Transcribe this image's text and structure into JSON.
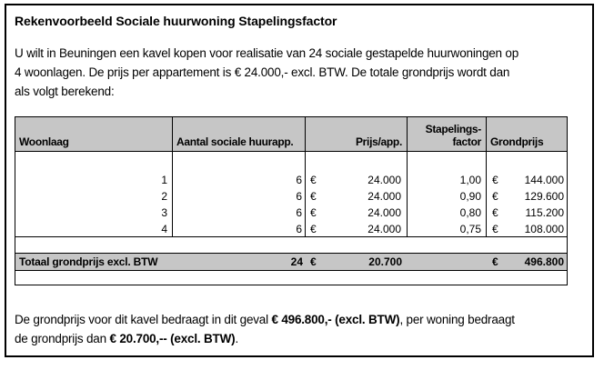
{
  "colors": {
    "page_bg": "#ffffff",
    "text": "#000000",
    "border": "#000000",
    "table_header_bg": "#c6c6c6",
    "table_total_bg": "#c6c6c6"
  },
  "document": {
    "title": "Rekenvoorbeeld Sociale huurwoning Stapelingsfactor",
    "intro_lines": [
      "U wilt in Beuningen een kavel kopen voor realisatie van 24 sociale gestapelde huurwoningen op",
      "4 woonlagen. De prijs per appartement is € 24.000,- excl. BTW. De totale grondprijs wordt dan",
      "als volgt berekend:"
    ],
    "closing_lines": [
      {
        "segments": [
          {
            "text": "De grondprijs voor dit kavel bedraagt in dit geval ",
            "bold": false
          },
          {
            "text": "€ 496.800,- (excl. BTW)",
            "bold": true
          },
          {
            "text": ", per woning bedraagt",
            "bold": false
          }
        ]
      },
      {
        "segments": [
          {
            "text": "de grondprijs dan ",
            "bold": false
          },
          {
            "text": "€ 20.700,-- (excl. BTW)",
            "bold": true
          },
          {
            "text": ".",
            "bold": false
          }
        ]
      }
    ]
  },
  "table": {
    "columns": [
      {
        "label": "Woonlaag",
        "align": "left"
      },
      {
        "label": "Aantal sociale huurapp.",
        "align": "left"
      },
      {
        "label": "Prijs/app.",
        "align": "right"
      },
      {
        "label": "Stapelings-factor",
        "label_line1": "Stapelings-",
        "label_line2": "factor",
        "align": "right"
      },
      {
        "label": "Grondprijs",
        "align": "left"
      }
    ],
    "rows": [
      {
        "woonlaag": "1",
        "aantal": "6",
        "valuta": "€",
        "prijs": "24.000",
        "factor": "1,00",
        "grond_valuta": "€",
        "grondprijs": "144.000"
      },
      {
        "woonlaag": "2",
        "aantal": "6",
        "valuta": "€",
        "prijs": "24.000",
        "factor": "0,90",
        "grond_valuta": "€",
        "grondprijs": "129.600"
      },
      {
        "woonlaag": "3",
        "aantal": "6",
        "valuta": "€",
        "prijs": "24.000",
        "factor": "0,80",
        "grond_valuta": "€",
        "grondprijs": "115.200"
      },
      {
        "woonlaag": "4",
        "aantal": "6",
        "valuta": "€",
        "prijs": "24.000",
        "factor": "0,75",
        "grond_valuta": "€",
        "grondprijs": "108.000"
      }
    ],
    "total": {
      "label": "Totaal grondprijs excl. BTW",
      "aantal": "24",
      "valuta": "€",
      "prijs": "20.700",
      "factor": "",
      "grond_valuta": "€",
      "grondprijs": "496.800"
    }
  }
}
